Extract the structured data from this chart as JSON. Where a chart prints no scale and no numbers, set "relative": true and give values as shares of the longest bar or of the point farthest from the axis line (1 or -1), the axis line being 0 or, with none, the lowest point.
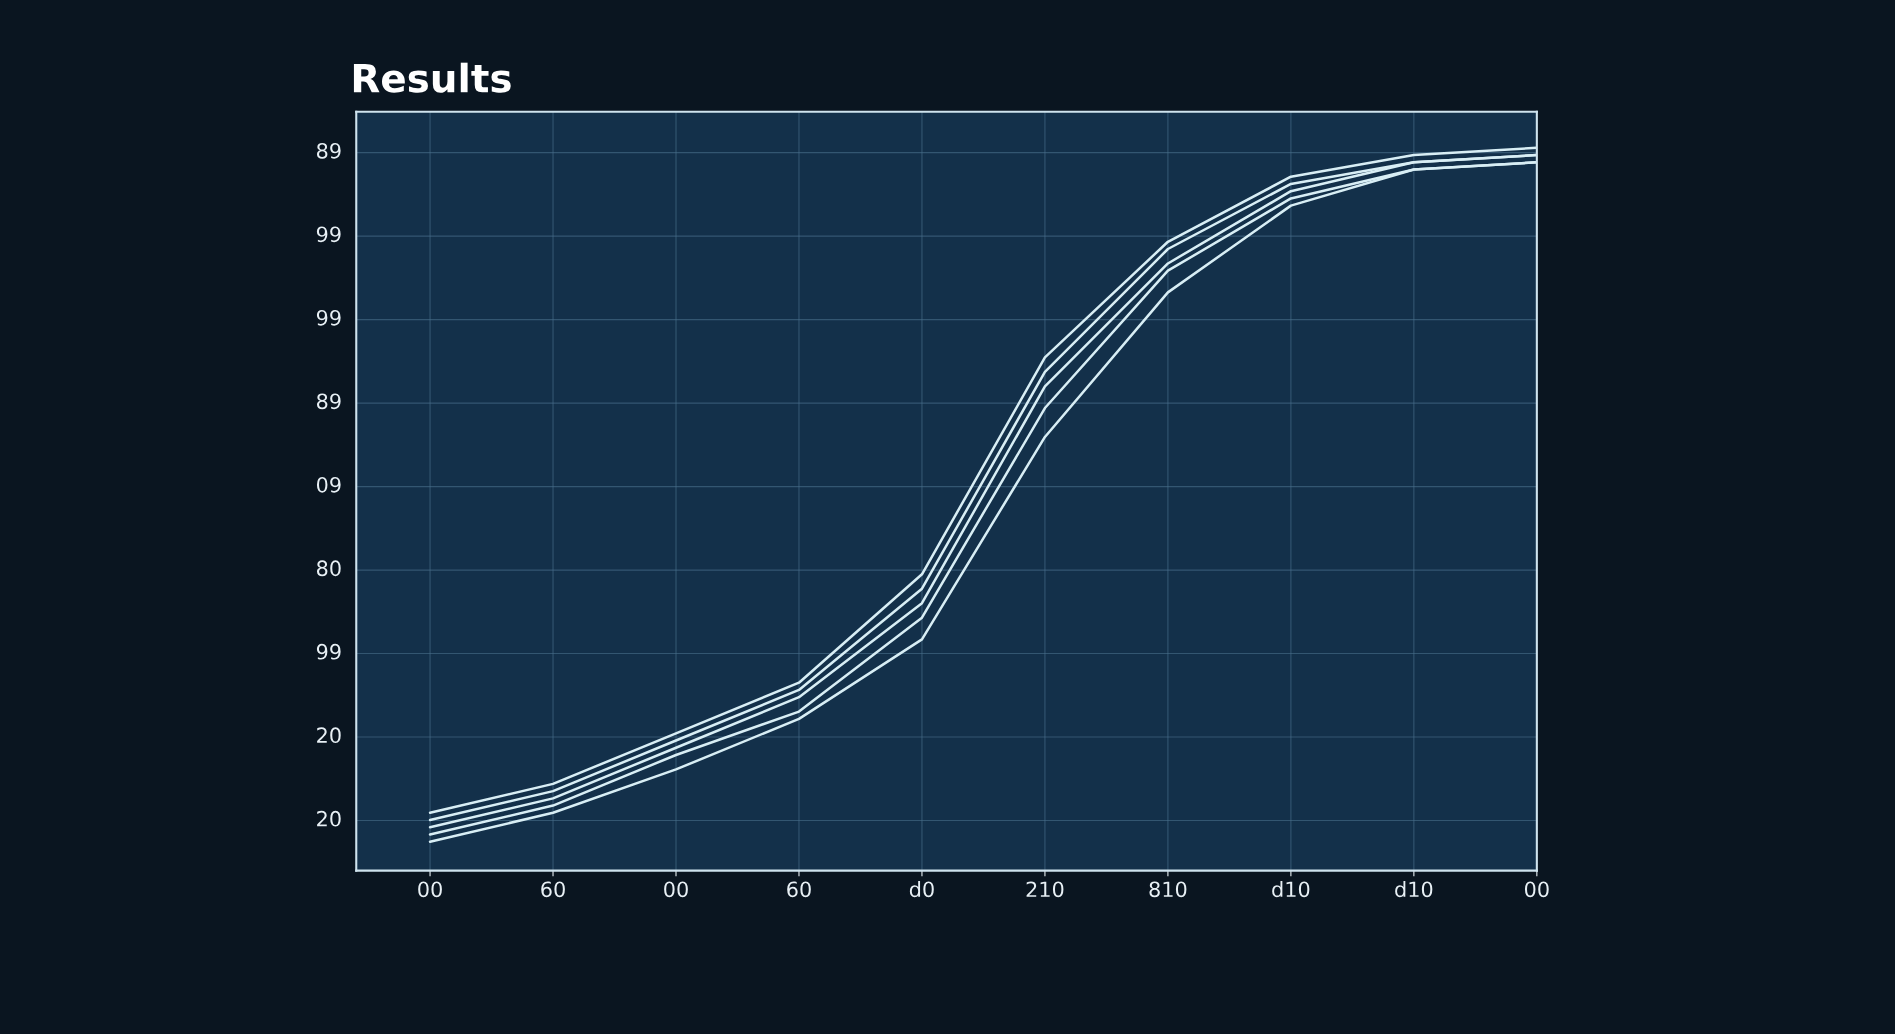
{
  "chart_data": {
    "type": "line",
    "title": "Results",
    "relative": true,
    "categories": [
      "00",
      "60",
      "00",
      "60",
      "d0",
      "210",
      "810",
      "d10",
      "d10",
      "00"
    ],
    "series": [
      {
        "color": "#d8eef5",
        "values": [
          0.08,
          0.12,
          0.19,
          0.26,
          0.41,
          0.71,
          0.87,
          0.96,
          0.99,
          1.0
        ]
      },
      {
        "color": "#d8eef5",
        "values": [
          0.07,
          0.11,
          0.18,
          0.25,
          0.39,
          0.69,
          0.86,
          0.95,
          0.98,
          0.99
        ]
      },
      {
        "color": "#d8eef5",
        "values": [
          0.06,
          0.1,
          0.17,
          0.24,
          0.37,
          0.67,
          0.84,
          0.94,
          0.98,
          0.99
        ]
      },
      {
        "color": "#d8eef5",
        "values": [
          0.05,
          0.09,
          0.16,
          0.22,
          0.35,
          0.64,
          0.83,
          0.93,
          0.97,
          0.98
        ]
      },
      {
        "color": "#d8eef5",
        "values": [
          0.04,
          0.08,
          0.14,
          0.21,
          0.32,
          0.6,
          0.8,
          0.92,
          0.97,
          0.98
        ]
      }
    ],
    "annotations": [
      "20",
      "20",
      "99",
      "80",
      "09",
      "89",
      "99",
      "99",
      "89"
    ],
    "grid": true,
    "line_style": "solid",
    "marker": "none"
  }
}
